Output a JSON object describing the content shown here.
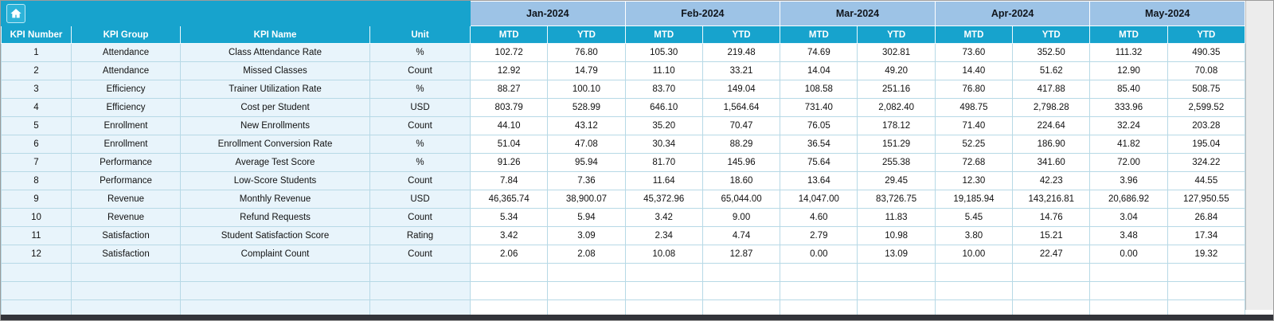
{
  "colors": {
    "teal": "#17a3cd",
    "month_header_bg": "#9dc3e6",
    "left_cell_bg": "#e8f4fb",
    "grid_border": "#b7d9e6",
    "bottom_bar": "#33343a"
  },
  "table": {
    "months": [
      "Jan-2024",
      "Feb-2024",
      "Mar-2024",
      "Apr-2024",
      "May-2024"
    ],
    "sub_headers": [
      "MTD",
      "YTD"
    ],
    "left_headers": [
      "KPI Number",
      "KPI Group",
      "KPI Name",
      "Unit"
    ],
    "rows": [
      {
        "num": "1",
        "group": "Attendance",
        "name": "Class Attendance Rate",
        "unit": "%",
        "values": [
          "102.72",
          "76.80",
          "105.30",
          "219.48",
          "74.69",
          "302.81",
          "73.60",
          "352.50",
          "111.32",
          "490.35"
        ]
      },
      {
        "num": "2",
        "group": "Attendance",
        "name": "Missed Classes",
        "unit": "Count",
        "values": [
          "12.92",
          "14.79",
          "11.10",
          "33.21",
          "14.04",
          "49.20",
          "14.40",
          "51.62",
          "12.90",
          "70.08"
        ]
      },
      {
        "num": "3",
        "group": "Efficiency",
        "name": "Trainer Utilization Rate",
        "unit": "%",
        "values": [
          "88.27",
          "100.10",
          "83.70",
          "149.04",
          "108.58",
          "251.16",
          "76.80",
          "417.88",
          "85.40",
          "508.75"
        ]
      },
      {
        "num": "4",
        "group": "Efficiency",
        "name": "Cost per Student",
        "unit": "USD",
        "values": [
          "803.79",
          "528.99",
          "646.10",
          "1,564.64",
          "731.40",
          "2,082.40",
          "498.75",
          "2,798.28",
          "333.96",
          "2,599.52"
        ]
      },
      {
        "num": "5",
        "group": "Enrollment",
        "name": "New Enrollments",
        "unit": "Count",
        "values": [
          "44.10",
          "43.12",
          "35.20",
          "70.47",
          "76.05",
          "178.12",
          "71.40",
          "224.64",
          "32.24",
          "203.28"
        ]
      },
      {
        "num": "6",
        "group": "Enrollment",
        "name": "Enrollment Conversion Rate",
        "unit": "%",
        "values": [
          "51.04",
          "47.08",
          "30.34",
          "88.29",
          "36.54",
          "151.29",
          "52.25",
          "186.90",
          "41.82",
          "195.04"
        ]
      },
      {
        "num": "7",
        "group": "Performance",
        "name": "Average Test Score",
        "unit": "%",
        "values": [
          "91.26",
          "95.94",
          "81.70",
          "145.96",
          "75.64",
          "255.38",
          "72.68",
          "341.60",
          "72.00",
          "324.22"
        ]
      },
      {
        "num": "8",
        "group": "Performance",
        "name": "Low-Score Students",
        "unit": "Count",
        "values": [
          "7.84",
          "7.36",
          "11.64",
          "18.60",
          "13.64",
          "29.45",
          "12.30",
          "42.23",
          "3.96",
          "44.55"
        ]
      },
      {
        "num": "9",
        "group": "Revenue",
        "name": "Monthly Revenue",
        "unit": "USD",
        "values": [
          "46,365.74",
          "38,900.07",
          "45,372.96",
          "65,044.00",
          "14,047.00",
          "83,726.75",
          "19,185.94",
          "143,216.81",
          "20,686.92",
          "127,950.55"
        ]
      },
      {
        "num": "10",
        "group": "Revenue",
        "name": "Refund Requests",
        "unit": "Count",
        "values": [
          "5.34",
          "5.94",
          "3.42",
          "9.00",
          "4.60",
          "11.83",
          "5.45",
          "14.76",
          "3.04",
          "26.84"
        ]
      },
      {
        "num": "11",
        "group": "Satisfaction",
        "name": "Student Satisfaction Score",
        "unit": "Rating",
        "values": [
          "3.42",
          "3.09",
          "2.34",
          "4.74",
          "2.79",
          "10.98",
          "3.80",
          "15.21",
          "3.48",
          "17.34"
        ]
      },
      {
        "num": "12",
        "group": "Satisfaction",
        "name": "Complaint Count",
        "unit": "Count",
        "values": [
          "2.06",
          "2.08",
          "10.08",
          "12.87",
          "0.00",
          "13.09",
          "10.00",
          "22.47",
          "0.00",
          "19.32"
        ]
      }
    ],
    "empty_row_count": 3
  }
}
